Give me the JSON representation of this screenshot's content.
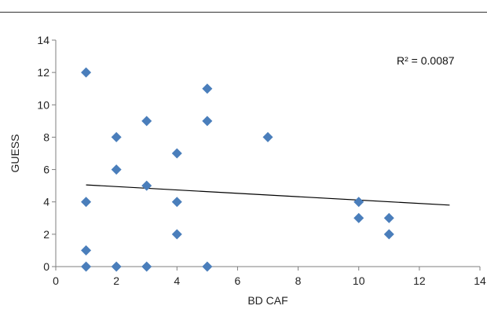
{
  "chart_data": {
    "type": "scatter",
    "title": "",
    "xlabel": "BD CAF",
    "ylabel": "GUESS",
    "xlim": [
      0,
      14
    ],
    "ylim": [
      0,
      14
    ],
    "x_ticks": [
      0,
      2,
      4,
      6,
      8,
      10,
      12,
      14
    ],
    "y_ticks": [
      0,
      2,
      4,
      6,
      8,
      10,
      12,
      14
    ],
    "grid": false,
    "legend": "none",
    "series": [
      {
        "color": "#4a7ebb",
        "marker": "diamond",
        "points": [
          {
            "x": 1,
            "y": 12
          },
          {
            "x": 1,
            "y": 4
          },
          {
            "x": 1,
            "y": 1
          },
          {
            "x": 1,
            "y": 0
          },
          {
            "x": 2,
            "y": 8
          },
          {
            "x": 2,
            "y": 6
          },
          {
            "x": 2,
            "y": 0
          },
          {
            "x": 3,
            "y": 9
          },
          {
            "x": 3,
            "y": 5
          },
          {
            "x": 3,
            "y": 0
          },
          {
            "x": 4,
            "y": 7
          },
          {
            "x": 4,
            "y": 4
          },
          {
            "x": 4,
            "y": 2
          },
          {
            "x": 5,
            "y": 11
          },
          {
            "x": 5,
            "y": 9
          },
          {
            "x": 5,
            "y": 0
          },
          {
            "x": 7,
            "y": 8
          },
          {
            "x": 10,
            "y": 4
          },
          {
            "x": 10,
            "y": 3
          },
          {
            "x": 11,
            "y": 3
          },
          {
            "x": 11,
            "y": 2
          }
        ]
      }
    ],
    "trendline": {
      "type": "linear",
      "color": "#000000",
      "start": {
        "x": 1,
        "y": 5.05
      },
      "end": {
        "x": 13,
        "y": 3.8
      }
    },
    "annotations": [
      {
        "text": "R² = 0.0087"
      }
    ]
  }
}
